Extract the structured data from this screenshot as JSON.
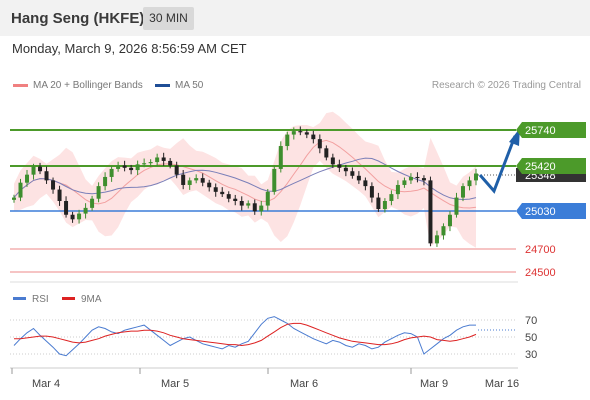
{
  "header": {
    "title": "Hang Seng (HKFE)",
    "timeframe": "30 MIN"
  },
  "datetime": "Monday, March 9, 2026 8:56:59 AM CET",
  "legend": {
    "items": [
      {
        "label": "MA 20 + Bollinger Bands",
        "color": "#f08080"
      },
      {
        "label": "MA 50",
        "color": "#1f4e96"
      }
    ],
    "credit": "Research © 2026 Trading Central"
  },
  "levels": [
    {
      "value": "25740",
      "type": "resistance",
      "color": "#4c9a2a"
    },
    {
      "value": "25420",
      "type": "resistance",
      "color": "#4c9a2a"
    },
    {
      "value": "25030",
      "type": "pivot",
      "color": "#3b7dd8"
    },
    {
      "value": "24700",
      "type": "support",
      "color": "#e06060"
    },
    {
      "value": "24500",
      "type": "support",
      "color": "#e06060"
    }
  ],
  "current_price": "25348",
  "x_axis": [
    "Mar 4",
    "Mar 5",
    "Mar 6",
    "Mar 9",
    "Mar 16"
  ],
  "rsi_legend": [
    {
      "label": "RSI",
      "color": "#4a7bd0"
    },
    {
      "label": "9MA",
      "color": "#dd2222"
    }
  ],
  "rsi_axis": [
    "70",
    "50",
    "30"
  ],
  "chart_data": {
    "type": "line",
    "price_series": [
      25150,
      25280,
      25350,
      25420,
      25380,
      25300,
      25220,
      25120,
      25000,
      24960,
      25010,
      25060,
      25140,
      25250,
      25330,
      25400,
      25430,
      25410,
      25390,
      25440,
      25450,
      25460,
      25500,
      25470,
      25430,
      25350,
      25260,
      25300,
      25320,
      25280,
      25240,
      25200,
      25180,
      25140,
      25120,
      25080,
      25100,
      25030,
      25080,
      25200,
      25400,
      25600,
      25700,
      25730,
      25720,
      25700,
      25660,
      25580,
      25500,
      25440,
      25410,
      25380,
      25340,
      25300,
      25250,
      25150,
      25050,
      25120,
      25180,
      25260,
      25300,
      25330,
      25320,
      25300,
      24750,
      24820,
      24900,
      25000,
      25150,
      25250,
      25300,
      25360
    ],
    "forecast": [
      25348,
      25270,
      25740
    ],
    "rsi": [
      40,
      48,
      55,
      60,
      52,
      45,
      38,
      30,
      28,
      35,
      42,
      50,
      58,
      62,
      60,
      56,
      54,
      58,
      60,
      62,
      64,
      58,
      52,
      46,
      40,
      44,
      48,
      50,
      46,
      42,
      40,
      38,
      36,
      40,
      38,
      42,
      45,
      55,
      65,
      72,
      74,
      70,
      66,
      60,
      56,
      52,
      48,
      45,
      42,
      46,
      44,
      40,
      38,
      42,
      40,
      36,
      38,
      44,
      48,
      52,
      55,
      54,
      50,
      30,
      36,
      42,
      48,
      52,
      58,
      62,
      64,
      64
    ],
    "rsi_ma": [
      48,
      48,
      49,
      50,
      51,
      51,
      50,
      48,
      46,
      44,
      43,
      44,
      46,
      48,
      51,
      53,
      55,
      56,
      57,
      57,
      58,
      58,
      57,
      55,
      52,
      50,
      48,
      47,
      46,
      45,
      44,
      43,
      42,
      41,
      41,
      40,
      41,
      43,
      46,
      51,
      56,
      61,
      65,
      66,
      66,
      64,
      61,
      58,
      55,
      52,
      49,
      47,
      45,
      44,
      43,
      42,
      41,
      41,
      42,
      44,
      47,
      49,
      50,
      51,
      50,
      47,
      46,
      45,
      46,
      48,
      50,
      53
    ]
  }
}
